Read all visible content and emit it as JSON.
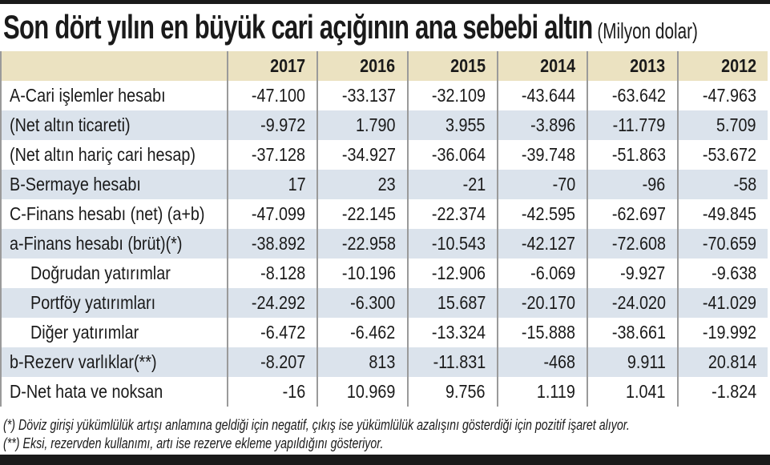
{
  "title": "Son dört yılın en büyük cari açığının ana sebebi altın",
  "unit": "(Milyon dolar)",
  "chart_data": {
    "type": "table",
    "title": "Son dört yılın en büyük cari açığının ana sebebi altın",
    "unit": "(Milyon dolar)",
    "columns": [
      "2017",
      "2016",
      "2015",
      "2014",
      "2013",
      "2012"
    ],
    "rows": [
      {
        "label": "A-Cari işlemler hesabı",
        "values": [
          "-47.100",
          "-33.137",
          "-32.109",
          "-43.644",
          "-63.642",
          "-47.963"
        ]
      },
      {
        "label": "(Net altın ticareti)",
        "values": [
          "-9.972",
          "1.790",
          "3.955",
          "-3.896",
          "-11.779",
          "5.709"
        ]
      },
      {
        "label": "(Net altın hariç cari hesap)",
        "values": [
          "-37.128",
          "-34.927",
          "-36.064",
          "-39.748",
          "-51.863",
          "-53.672"
        ]
      },
      {
        "label": "B-Sermaye hesabı",
        "values": [
          "17",
          "23",
          "-21",
          "-70",
          "-96",
          "-58"
        ]
      },
      {
        "label": "C-Finans hesabı (net) (a+b)",
        "values": [
          "-47.099",
          "-22.145",
          "-22.374",
          "-42.595",
          "-62.697",
          "-49.845"
        ]
      },
      {
        "label": "a-Finans hesabı (brüt)(*)",
        "values": [
          "-38.892",
          "-22.958",
          "-10.543",
          "-42.127",
          "-72.608",
          "-70.659"
        ]
      },
      {
        "label": "Doğrudan yatırımlar",
        "indent": true,
        "values": [
          "-8.128",
          "-10.196",
          "-12.906",
          "-6.069",
          "-9.927",
          "-9.638"
        ]
      },
      {
        "label": "Portföy yatırımları",
        "indent": true,
        "values": [
          "-24.292",
          "-6.300",
          "15.687",
          "-20.170",
          "-24.020",
          "-41.029"
        ]
      },
      {
        "label": "Diğer yatırımlar",
        "indent": true,
        "values": [
          "-6.472",
          "-6.462",
          "-13.324",
          "-15.888",
          "-38.661",
          "-19.992"
        ]
      },
      {
        "label": "b-Rezerv varlıklar(**)",
        "values": [
          "-8.207",
          "813",
          "-11.831",
          "-468",
          "9.911",
          "20.814"
        ]
      },
      {
        "label": "D-Net hata ve noksan",
        "values": [
          "-16",
          "10.969",
          "9.756",
          "1.119",
          "1.041",
          "-1.824"
        ]
      }
    ]
  },
  "footnotes": [
    "(*) Döviz girişi yükümlülük artışı anlamına geldiği için negatif, çıkış ise yükümlülük azalışını gösterdiği için pozitif işaret alıyor.",
    "(**) Eksi, rezervden kullanımı, artı ise rezerve ekleme yapıldığını gösteriyor."
  ],
  "colors": {
    "header_bg": "#ebe2c1",
    "alt_row_bg": "#dbe3ec",
    "bar": "#1a1a1a"
  }
}
